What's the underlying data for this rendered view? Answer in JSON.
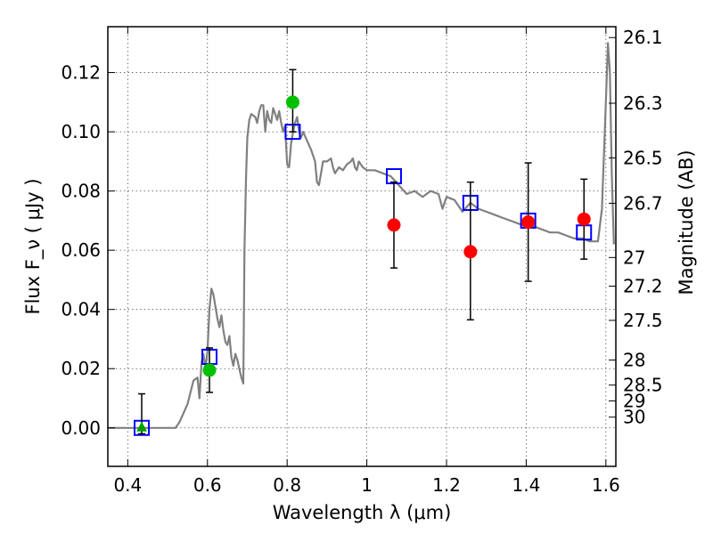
{
  "chart_data": {
    "type": "scatter",
    "xlabel": "Wavelength  λ (μm)",
    "ylabel": "Flux  F_ν  ( μJy )",
    "y2label": "Magnitude (AB)",
    "xlim": [
      0.35,
      1.625
    ],
    "ylim": [
      -0.013,
      0.1355
    ],
    "grid": true,
    "x_ticks": [
      {
        "value": 0.4,
        "label": "0.4"
      },
      {
        "value": 0.6,
        "label": "0.6"
      },
      {
        "value": 0.8,
        "label": "0.8"
      },
      {
        "value": 1.0,
        "label": "1"
      },
      {
        "value": 1.2,
        "label": "1.2"
      },
      {
        "value": 1.4,
        "label": "1.4"
      },
      {
        "value": 1.6,
        "label": "1.6"
      }
    ],
    "y_ticks": [
      {
        "value": 0.0,
        "label": "0.00"
      },
      {
        "value": 0.02,
        "label": "0.02"
      },
      {
        "value": 0.04,
        "label": "0.04"
      },
      {
        "value": 0.06,
        "label": "0.06"
      },
      {
        "value": 0.08,
        "label": "0.08"
      },
      {
        "value": 0.1,
        "label": "0.10"
      },
      {
        "value": 0.12,
        "label": "0.12"
      }
    ],
    "y2_ticks": [
      {
        "mag": 26.1,
        "label": "26.1"
      },
      {
        "mag": 26.3,
        "label": "26.3"
      },
      {
        "mag": 26.5,
        "label": "26.5"
      },
      {
        "mag": 26.7,
        "label": "26.7"
      },
      {
        "mag": 27.0,
        "label": "27"
      },
      {
        "mag": 27.2,
        "label": "27.2"
      },
      {
        "mag": 27.5,
        "label": "27.5"
      },
      {
        "mag": 28.0,
        "label": "28"
      },
      {
        "mag": 28.5,
        "label": "28.5"
      },
      {
        "mag": 29.0,
        "label": "29"
      },
      {
        "mag": 30.0,
        "label": "30"
      }
    ],
    "series": [
      {
        "kind": "line",
        "color": "#808080",
        "points": [
          [
            0.35,
            0.0
          ],
          [
            0.52,
            0.0
          ],
          [
            0.53,
            0.002
          ],
          [
            0.55,
            0.008
          ],
          [
            0.565,
            0.016
          ],
          [
            0.575,
            0.017
          ],
          [
            0.58,
            0.01
          ],
          [
            0.585,
            0.022
          ],
          [
            0.59,
            0.025
          ],
          [
            0.595,
            0.02
          ],
          [
            0.6,
            0.026
          ],
          [
            0.605,
            0.04
          ],
          [
            0.61,
            0.047
          ],
          [
            0.615,
            0.045
          ],
          [
            0.62,
            0.041
          ],
          [
            0.625,
            0.037
          ],
          [
            0.63,
            0.034
          ],
          [
            0.635,
            0.038
          ],
          [
            0.64,
            0.033
          ],
          [
            0.645,
            0.029
          ],
          [
            0.65,
            0.028
          ],
          [
            0.655,
            0.031
          ],
          [
            0.66,
            0.024
          ],
          [
            0.665,
            0.021
          ],
          [
            0.67,
            0.025
          ],
          [
            0.675,
            0.023
          ],
          [
            0.68,
            0.02
          ],
          [
            0.685,
            0.017
          ],
          [
            0.69,
            0.015
          ],
          [
            0.693,
            0.06
          ],
          [
            0.697,
            0.085
          ],
          [
            0.7,
            0.098
          ],
          [
            0.705,
            0.104
          ],
          [
            0.71,
            0.106
          ],
          [
            0.72,
            0.105
          ],
          [
            0.725,
            0.103
          ],
          [
            0.73,
            0.107
          ],
          [
            0.735,
            0.109
          ],
          [
            0.74,
            0.109
          ],
          [
            0.745,
            0.1
          ],
          [
            0.75,
            0.107
          ],
          [
            0.755,
            0.104
          ],
          [
            0.76,
            0.103
          ],
          [
            0.765,
            0.108
          ],
          [
            0.77,
            0.106
          ],
          [
            0.775,
            0.104
          ],
          [
            0.78,
            0.107
          ],
          [
            0.785,
            0.103
          ],
          [
            0.79,
            0.1
          ],
          [
            0.795,
            0.102
          ],
          [
            0.8,
            0.089
          ],
          [
            0.805,
            0.088
          ],
          [
            0.81,
            0.096
          ],
          [
            0.815,
            0.1
          ],
          [
            0.82,
            0.103
          ],
          [
            0.825,
            0.105
          ],
          [
            0.83,
            0.1
          ],
          [
            0.835,
            0.098
          ],
          [
            0.84,
            0.1
          ],
          [
            0.85,
            0.097
          ],
          [
            0.86,
            0.094
          ],
          [
            0.87,
            0.09
          ],
          [
            0.875,
            0.083
          ],
          [
            0.88,
            0.082
          ],
          [
            0.885,
            0.086
          ],
          [
            0.89,
            0.09
          ],
          [
            0.9,
            0.09
          ],
          [
            0.91,
            0.091
          ],
          [
            0.915,
            0.088
          ],
          [
            0.92,
            0.086
          ],
          [
            0.93,
            0.088
          ],
          [
            0.94,
            0.087
          ],
          [
            0.95,
            0.089
          ],
          [
            0.96,
            0.09
          ],
          [
            0.965,
            0.091
          ],
          [
            0.97,
            0.088
          ],
          [
            0.975,
            0.087
          ],
          [
            0.98,
            0.09
          ],
          [
            0.99,
            0.088
          ],
          [
            1.0,
            0.087
          ],
          [
            1.02,
            0.087
          ],
          [
            1.04,
            0.086
          ],
          [
            1.06,
            0.085
          ],
          [
            1.08,
            0.082
          ],
          [
            1.1,
            0.079
          ],
          [
            1.12,
            0.08
          ],
          [
            1.14,
            0.078
          ],
          [
            1.16,
            0.08
          ],
          [
            1.18,
            0.079
          ],
          [
            1.19,
            0.074
          ],
          [
            1.2,
            0.078
          ],
          [
            1.22,
            0.077
          ],
          [
            1.24,
            0.073
          ],
          [
            1.26,
            0.076
          ],
          [
            1.28,
            0.074
          ],
          [
            1.3,
            0.073
          ],
          [
            1.32,
            0.072
          ],
          [
            1.34,
            0.071
          ],
          [
            1.36,
            0.07
          ],
          [
            1.38,
            0.069
          ],
          [
            1.4,
            0.068
          ],
          [
            1.42,
            0.068
          ],
          [
            1.44,
            0.067
          ],
          [
            1.46,
            0.066
          ],
          [
            1.48,
            0.066
          ],
          [
            1.5,
            0.065
          ],
          [
            1.52,
            0.064
          ],
          [
            1.54,
            0.064
          ],
          [
            1.56,
            0.063
          ],
          [
            1.58,
            0.063
          ],
          [
            1.59,
            0.074
          ],
          [
            1.6,
            0.11
          ],
          [
            1.605,
            0.13
          ],
          [
            1.61,
            0.12
          ],
          [
            1.615,
            0.085
          ],
          [
            1.62,
            0.062
          ]
        ]
      },
      {
        "kind": "open-square",
        "color": "#0000ff",
        "points": [
          [
            0.435,
            0.0
          ],
          [
            0.605,
            0.024
          ],
          [
            0.814,
            0.1
          ],
          [
            1.068,
            0.085
          ],
          [
            1.26,
            0.076
          ],
          [
            1.405,
            0.07
          ],
          [
            1.545,
            0.066
          ]
        ]
      },
      {
        "kind": "errorbar",
        "color": "#000000",
        "bars": [
          {
            "x": 0.435,
            "low": -0.002,
            "high": 0.0115
          },
          {
            "x": 0.605,
            "low": 0.012,
            "high": 0.027
          },
          {
            "x": 0.814,
            "low": 0.1,
            "high": 0.121
          },
          {
            "x": 1.068,
            "low": 0.054,
            "high": 0.083
          },
          {
            "x": 1.26,
            "low": 0.0365,
            "high": 0.083
          },
          {
            "x": 1.405,
            "low": 0.0495,
            "high": 0.0895
          },
          {
            "x": 1.545,
            "low": 0.057,
            "high": 0.084
          }
        ]
      },
      {
        "kind": "filled-circle",
        "color": "#00c000",
        "points": [
          [
            0.605,
            0.0195
          ],
          [
            0.814,
            0.11
          ]
        ]
      },
      {
        "kind": "filled-circle",
        "color": "#ff0000",
        "points": [
          [
            1.068,
            0.0685
          ],
          [
            1.26,
            0.0595
          ],
          [
            1.405,
            0.0695
          ],
          [
            1.545,
            0.0705
          ]
        ]
      },
      {
        "kind": "triangle",
        "color": "#00a000",
        "points": [
          [
            0.435,
            0.0
          ]
        ]
      }
    ]
  }
}
